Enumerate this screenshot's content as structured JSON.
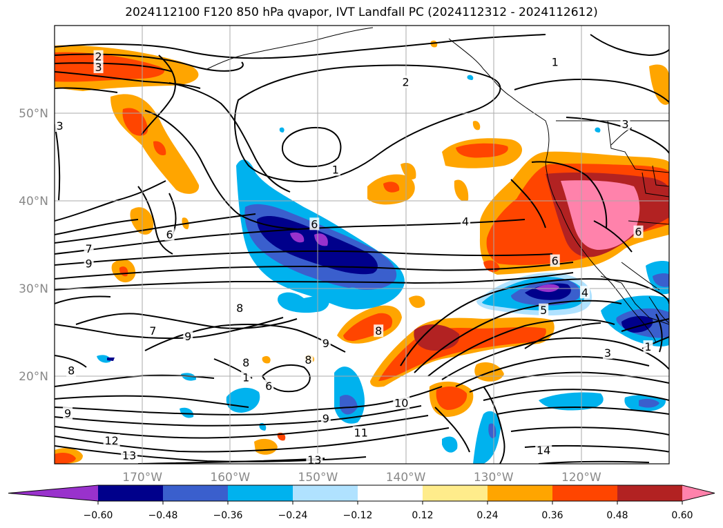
{
  "title": "2024112100 F120 850 hPa qvapor, IVT Landfall PC (2024112312 - 2024112612)",
  "map": {
    "lon_range": [
      -180,
      -110
    ],
    "lat_range": [
      10,
      60
    ],
    "lon_ticks": [
      {
        "value": -170,
        "label": "170°W"
      },
      {
        "value": -160,
        "label": "160°W"
      },
      {
        "value": -150,
        "label": "150°W"
      },
      {
        "value": -140,
        "label": "140°W"
      },
      {
        "value": -130,
        "label": "130°W"
      },
      {
        "value": -120,
        "label": "120°W"
      }
    ],
    "lat_ticks": [
      {
        "value": 20,
        "label": "20°N"
      },
      {
        "value": 30,
        "label": "30°N"
      },
      {
        "value": 40,
        "label": "40°N"
      },
      {
        "value": 50,
        "label": "50°N"
      }
    ],
    "grid": true,
    "contour_labels": [
      {
        "text": "2",
        "lon": -175,
        "lat": 56.4
      },
      {
        "text": "3",
        "lon": -175,
        "lat": 55.2
      },
      {
        "text": "3",
        "lon": -179.4,
        "lat": 48.5
      },
      {
        "text": "2",
        "lon": -140,
        "lat": 53.5
      },
      {
        "text": "1",
        "lon": -123,
        "lat": 55.8
      },
      {
        "text": "1",
        "lon": -148,
        "lat": 43.5
      },
      {
        "text": "3",
        "lon": -115,
        "lat": 48.7
      },
      {
        "text": "6",
        "lon": -150.4,
        "lat": 37.3
      },
      {
        "text": "4",
        "lon": -133.2,
        "lat": 37.6
      },
      {
        "text": "6",
        "lon": -166.9,
        "lat": 36.1
      },
      {
        "text": "7",
        "lon": -176.1,
        "lat": 34.5
      },
      {
        "text": "9",
        "lon": -176.1,
        "lat": 32.8
      },
      {
        "text": "6",
        "lon": -123,
        "lat": 33.1
      },
      {
        "text": "6",
        "lon": -113.5,
        "lat": 36.4
      },
      {
        "text": "4",
        "lon": -119.6,
        "lat": 29.5
      },
      {
        "text": "5",
        "lon": -124.3,
        "lat": 27.5
      },
      {
        "text": "8",
        "lon": -158.9,
        "lat": 27.7
      },
      {
        "text": "7",
        "lon": -168.8,
        "lat": 25.1
      },
      {
        "text": "9",
        "lon": -164.8,
        "lat": 24.5
      },
      {
        "text": "8",
        "lon": -143.1,
        "lat": 25.1
      },
      {
        "text": "9",
        "lon": -149.1,
        "lat": 23.7
      },
      {
        "text": "8",
        "lon": -158.2,
        "lat": 21.5
      },
      {
        "text": "8",
        "lon": -151.1,
        "lat": 21.8
      },
      {
        "text": "8",
        "lon": -178.1,
        "lat": 20.6
      },
      {
        "text": "1",
        "lon": -158.2,
        "lat": 19.8
      },
      {
        "text": "6",
        "lon": -155.6,
        "lat": 18.8
      },
      {
        "text": "3",
        "lon": -117,
        "lat": 22.6
      },
      {
        "text": "1",
        "lon": -112.4,
        "lat": 23.3
      },
      {
        "text": "10",
        "lon": -140.5,
        "lat": 16.9
      },
      {
        "text": "9",
        "lon": -178.5,
        "lat": 15.7
      },
      {
        "text": "9",
        "lon": -149.1,
        "lat": 15.1
      },
      {
        "text": "11",
        "lon": -145.1,
        "lat": 13.5
      },
      {
        "text": "12",
        "lon": -173.5,
        "lat": 12.6
      },
      {
        "text": "13",
        "lon": -171.5,
        "lat": 10.9
      },
      {
        "text": "13",
        "lon": -150.4,
        "lat": 10.4
      },
      {
        "text": "14",
        "lon": -124.3,
        "lat": 11.5
      }
    ]
  },
  "colorbar": {
    "ticks": [
      "−0.60",
      "−0.48",
      "−0.36",
      "−0.24",
      "−0.12",
      "0.12",
      "0.24",
      "0.36",
      "0.48",
      "0.60"
    ],
    "colors": [
      "#9932cc",
      "#00008b",
      "#3a5fcd",
      "#00b2ee",
      "#b0e2ff",
      "#ffffff",
      "#ffec8b",
      "#ffa500",
      "#ff4500",
      "#b22222",
      "#ff82ab"
    ]
  }
}
